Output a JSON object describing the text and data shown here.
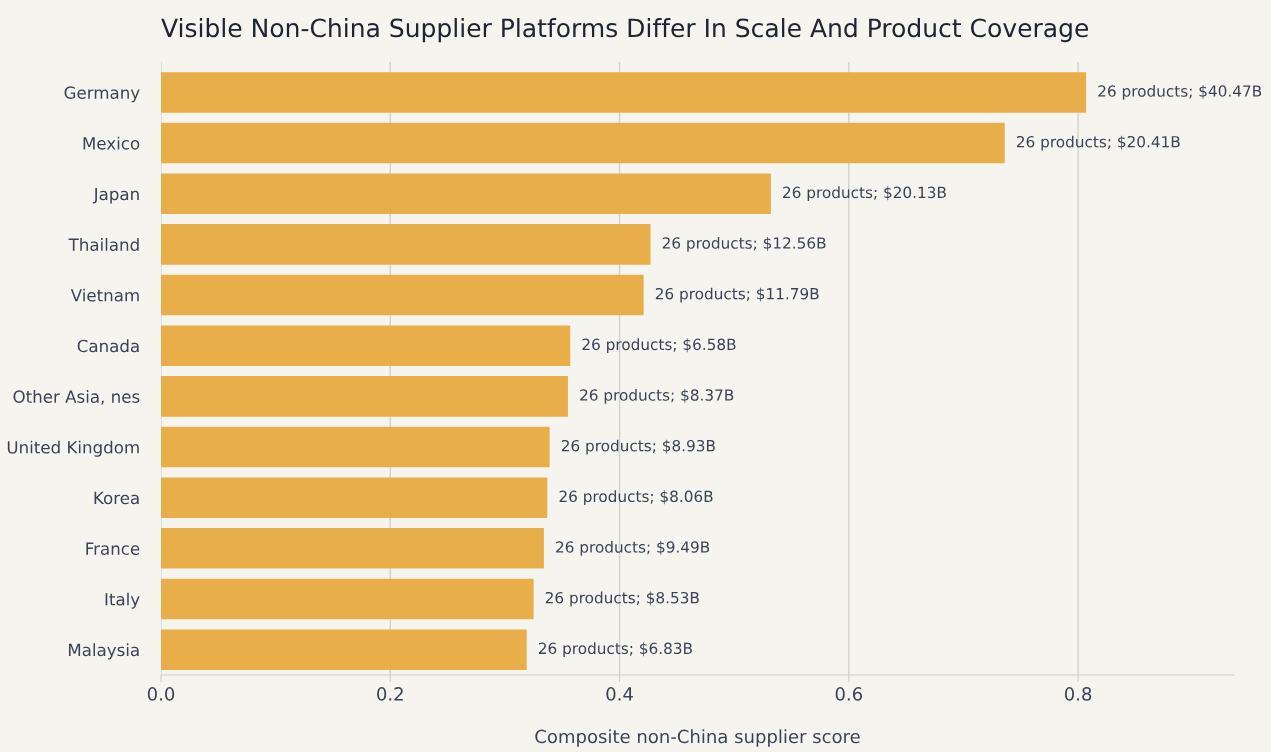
{
  "chart_data": {
    "type": "bar",
    "orientation": "horizontal",
    "title": "Visible Non-China Supplier Platforms Differ In Scale And Product Coverage",
    "xlabel": "Composite non-China supplier score",
    "categories": [
      "Germany",
      "Mexico",
      "Japan",
      "Thailand",
      "Vietnam",
      "Canada",
      "Other Asia, nes",
      "United Kingdom",
      "Korea",
      "France",
      "Italy",
      "Malaysia"
    ],
    "values": [
      0.807,
      0.736,
      0.532,
      0.427,
      0.421,
      0.357,
      0.355,
      0.339,
      0.337,
      0.334,
      0.325,
      0.319
    ],
    "annotations": [
      {
        "text": "26 products; $40.47B",
        "x": 0.807,
        "y": "Germany"
      },
      {
        "text": "26 products; $20.41B",
        "x": 0.736,
        "y": "Mexico"
      },
      {
        "text": "26 products; $20.13B",
        "x": 0.532,
        "y": "Japan"
      },
      {
        "text": "26 products; $12.56B",
        "x": 0.427,
        "y": "Thailand"
      },
      {
        "text": "26 products; $11.79B",
        "x": 0.421,
        "y": "Vietnam"
      },
      {
        "text": "26 products; $6.58B",
        "x": 0.357,
        "y": "Canada"
      },
      {
        "text": "26 products; $8.37B",
        "x": 0.355,
        "y": "Other Asia, nes"
      },
      {
        "text": "26 products; $8.93B",
        "x": 0.339,
        "y": "United Kingdom"
      },
      {
        "text": "26 products; $8.06B",
        "x": 0.337,
        "y": "Korea"
      },
      {
        "text": "26 products; $9.49B",
        "x": 0.334,
        "y": "France"
      },
      {
        "text": "26 products; $8.53B",
        "x": 0.325,
        "y": "Italy"
      },
      {
        "text": "26 products; $6.83B",
        "x": 0.319,
        "y": "Malaysia"
      }
    ],
    "color": "#e8ae4a",
    "xlim": [
      0,
      0.936
    ],
    "xticks": [
      {
        "value": 0,
        "label": "0.0"
      },
      0.2,
      0.4,
      0.6,
      0.8
    ],
    "grid": "x"
  }
}
